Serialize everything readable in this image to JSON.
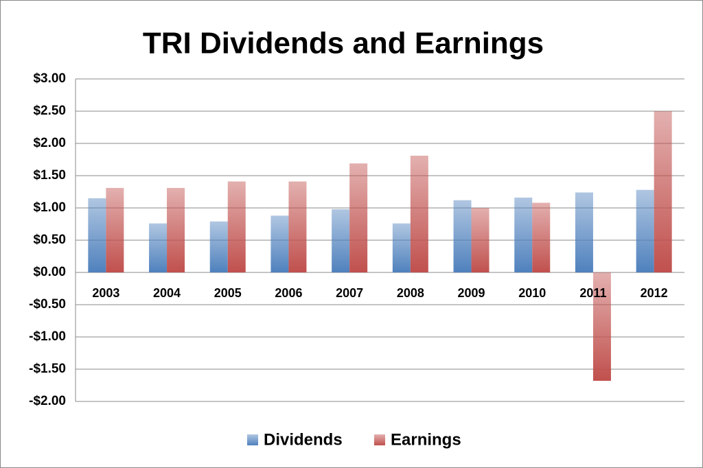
{
  "chart_data": {
    "type": "bar",
    "title": "TRI Dividends and Earnings",
    "categories": [
      "2003",
      "2004",
      "2005",
      "2006",
      "2007",
      "2008",
      "2009",
      "2010",
      "2011",
      "2012"
    ],
    "series": [
      {
        "name": "Dividends",
        "color": "#4f81bd",
        "values": [
          1.15,
          0.76,
          0.79,
          0.88,
          0.98,
          0.76,
          1.12,
          1.16,
          1.24,
          1.28
        ]
      },
      {
        "name": "Earnings",
        "color": "#c0504d",
        "values": [
          1.31,
          1.31,
          1.41,
          1.41,
          1.69,
          1.81,
          1.0,
          1.08,
          -1.68,
          2.5
        ]
      }
    ],
    "ylim": [
      -2,
      3
    ],
    "yticks": [
      {
        "value": 3,
        "label": "$3.00"
      },
      {
        "value": 2.5,
        "label": "$2.50"
      },
      {
        "value": 2,
        "label": "$2.00"
      },
      {
        "value": 1.5,
        "label": "$1.50"
      },
      {
        "value": 1,
        "label": "$1.00"
      },
      {
        "value": 0.5,
        "label": "$0.50"
      },
      {
        "value": 0,
        "label": "$0.00"
      },
      {
        "value": -0.5,
        "label": "-$0.50"
      },
      {
        "value": -1,
        "label": "-$1.00"
      },
      {
        "value": -1.5,
        "label": "-$1.50"
      },
      {
        "value": -2,
        "label": "-$2.00"
      }
    ],
    "grid": true,
    "legend": "bottom"
  }
}
